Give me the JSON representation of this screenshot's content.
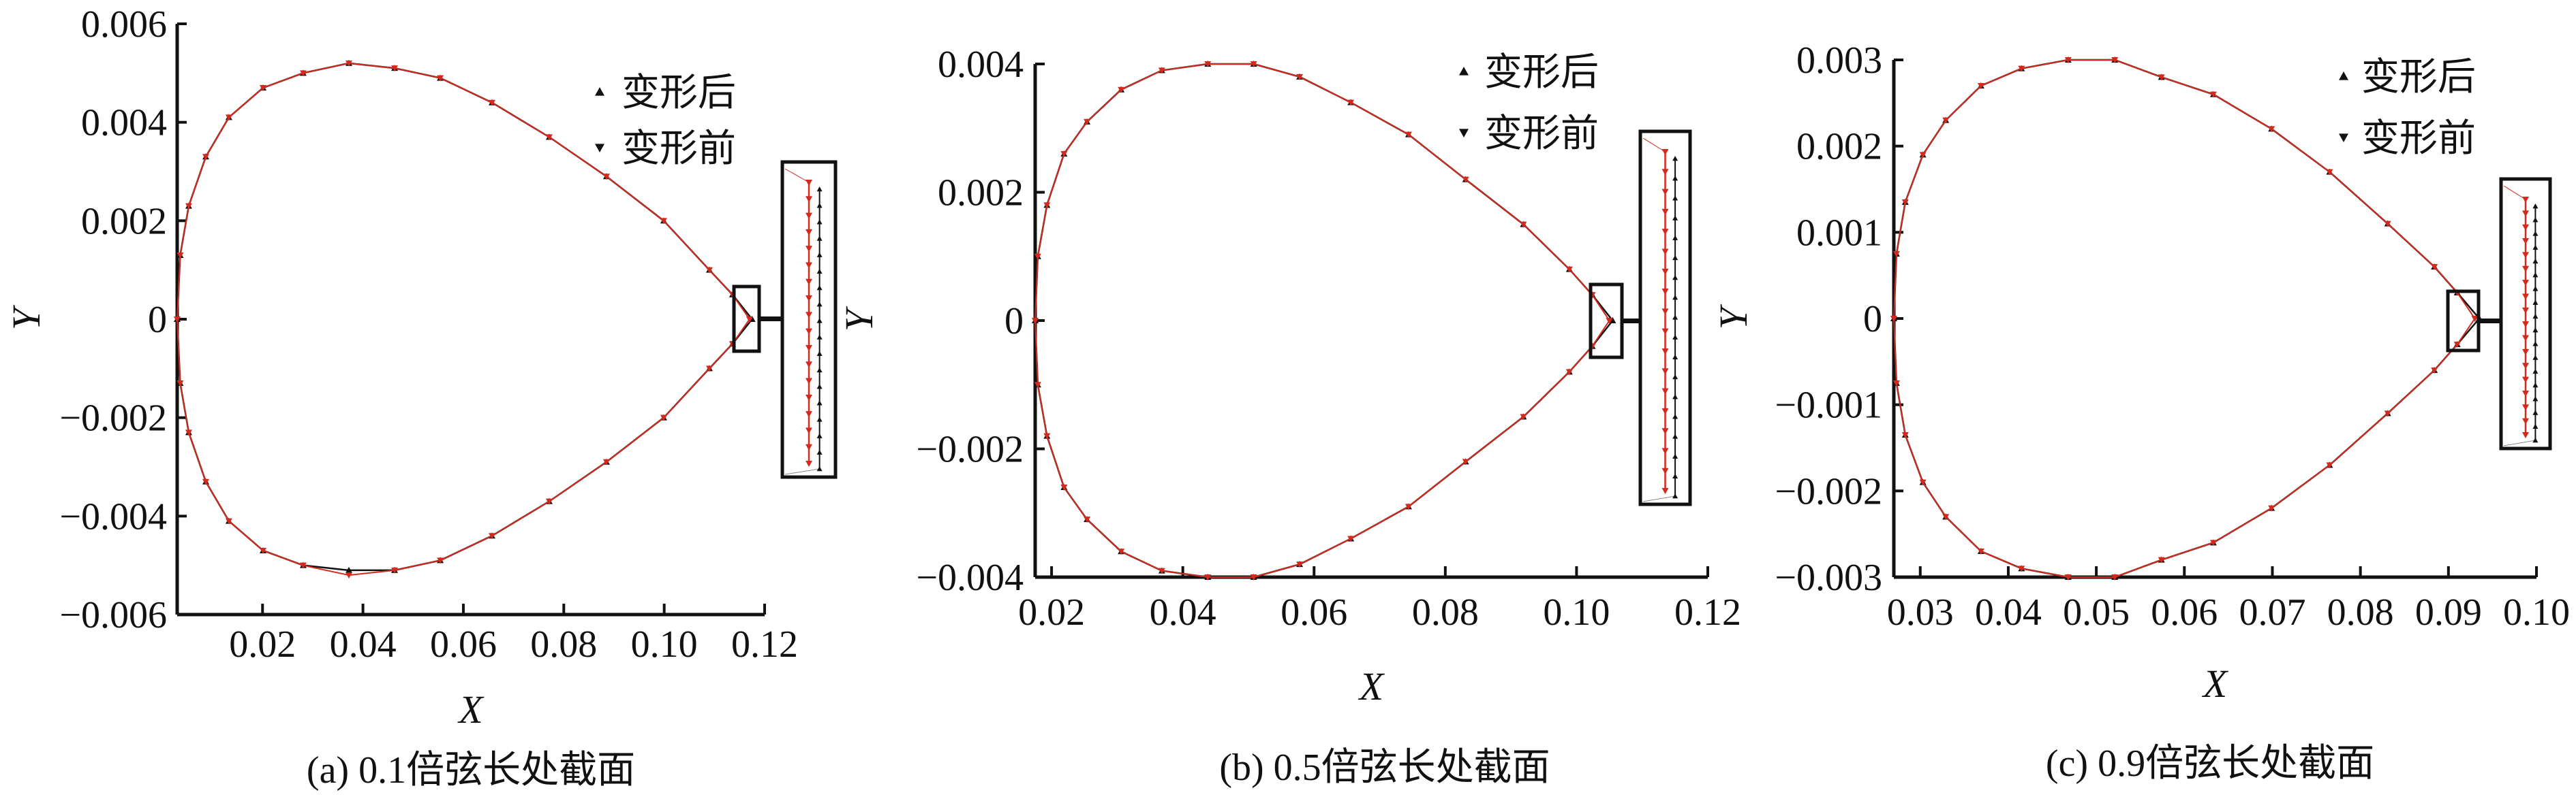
{
  "chart_data": [
    {
      "type": "line",
      "caption": "(a) 0.1倍弦长处截面",
      "xlabel": "X",
      "ylabel": "Y",
      "xlim": [
        0.003,
        0.12
      ],
      "ylim": [
        -0.006,
        0.006
      ],
      "xticks": [
        "0.02",
        "0.04",
        "0.06",
        "0.08",
        "0.10",
        "0.12"
      ],
      "xtick_values": [
        0.02,
        0.04,
        0.06,
        0.08,
        0.1,
        0.12
      ],
      "yticks": [
        "0.006",
        "0.004",
        "0.002",
        "0",
        "−0.002",
        "−0.004",
        "−0.006"
      ],
      "ytick_values": [
        0.006,
        0.004,
        0.002,
        0,
        -0.002,
        -0.004,
        -0.006
      ],
      "legend_placement": "top-right",
      "zoom_inset": "trailing edge",
      "series": [
        {
          "name": "变形后",
          "marker": "triangle-up",
          "color": "#111111",
          "x": [
            0.003,
            0.0036,
            0.0053,
            0.0087,
            0.0133,
            0.0201,
            0.0281,
            0.0372,
            0.0463,
            0.0554,
            0.0657,
            0.0771,
            0.0885,
            0.0999,
            0.109,
            0.1136,
            0.1175
          ],
          "y_upper": [
            0,
            0.0013,
            0.0023,
            0.0033,
            0.0041,
            0.0047,
            0.005,
            0.0052,
            0.0051,
            0.0049,
            0.0044,
            0.0037,
            0.0029,
            0.002,
            0.001,
            0.0005,
            0
          ],
          "y_lower": [
            0,
            -0.0013,
            -0.0023,
            -0.0033,
            -0.0041,
            -0.0047,
            -0.005,
            -0.0051,
            -0.0051,
            -0.0049,
            -0.0044,
            -0.0037,
            -0.0029,
            -0.002,
            -0.001,
            -0.0005,
            0
          ]
        },
        {
          "name": "变形前",
          "marker": "triangle-down",
          "color": "#d42a1e",
          "x": [
            0.003,
            0.0036,
            0.0053,
            0.0087,
            0.0133,
            0.0201,
            0.0281,
            0.0372,
            0.0463,
            0.0554,
            0.0657,
            0.0771,
            0.0885,
            0.0999,
            0.109,
            0.1136,
            0.117
          ],
          "y_upper": [
            0,
            0.0013,
            0.0023,
            0.0033,
            0.0041,
            0.0047,
            0.005,
            0.0052,
            0.0051,
            0.0049,
            0.0044,
            0.0037,
            0.0029,
            0.002,
            0.001,
            0.0005,
            0
          ],
          "y_lower": [
            0,
            -0.0013,
            -0.0023,
            -0.0033,
            -0.0041,
            -0.0047,
            -0.005,
            -0.0052,
            -0.0051,
            -0.0049,
            -0.0044,
            -0.0037,
            -0.0029,
            -0.002,
            -0.001,
            -0.0005,
            0
          ]
        }
      ]
    },
    {
      "type": "line",
      "caption": "(b) 0.5倍弦长处截面",
      "xlabel": "X",
      "ylabel": "Y",
      "xlim": [
        0.0175,
        0.12
      ],
      "ylim": [
        -0.004,
        0.004
      ],
      "xticks": [
        "0.02",
        "0.04",
        "0.06",
        "0.08",
        "0.10",
        "0.12"
      ],
      "xtick_values": [
        0.02,
        0.04,
        0.06,
        0.08,
        0.1,
        0.12
      ],
      "yticks": [
        "0.004",
        "0.002",
        "0",
        "−0.002",
        "−0.004"
      ],
      "ytick_values": [
        0.004,
        0.002,
        0,
        -0.002,
        -0.004
      ],
      "legend_placement": "top-right",
      "zoom_inset": "trailing edge",
      "series": [
        {
          "name": "变形后",
          "marker": "triangle-up",
          "color": "#111111",
          "x": [
            0.0175,
            0.0179,
            0.0193,
            0.0219,
            0.0254,
            0.0306,
            0.0368,
            0.0438,
            0.0508,
            0.0578,
            0.0656,
            0.0744,
            0.0831,
            0.0919,
            0.0989,
            0.1024,
            0.1055
          ],
          "y_upper": [
            0,
            0.001,
            0.0018,
            0.0026,
            0.0031,
            0.0036,
            0.0039,
            0.004,
            0.004,
            0.0038,
            0.0034,
            0.0029,
            0.0022,
            0.0015,
            0.0008,
            0.0004,
            0
          ],
          "y_lower": [
            0,
            -0.001,
            -0.0018,
            -0.0026,
            -0.0031,
            -0.0036,
            -0.0039,
            -0.004,
            -0.004,
            -0.0038,
            -0.0034,
            -0.0029,
            -0.0022,
            -0.0015,
            -0.0008,
            -0.0004,
            0
          ]
        },
        {
          "name": "变形前",
          "marker": "triangle-down",
          "color": "#d42a1e",
          "x": [
            0.0175,
            0.0179,
            0.0193,
            0.0219,
            0.0254,
            0.0306,
            0.0368,
            0.0438,
            0.0508,
            0.0578,
            0.0656,
            0.0744,
            0.0831,
            0.0919,
            0.0989,
            0.1024,
            0.105
          ],
          "y_upper": [
            0,
            0.001,
            0.0018,
            0.0026,
            0.0031,
            0.0036,
            0.0039,
            0.004,
            0.004,
            0.0038,
            0.0034,
            0.0029,
            0.0022,
            0.0015,
            0.0008,
            0.0004,
            0
          ],
          "y_lower": [
            0,
            -0.001,
            -0.0018,
            -0.0026,
            -0.0031,
            -0.0036,
            -0.0039,
            -0.004,
            -0.004,
            -0.0038,
            -0.0034,
            -0.0029,
            -0.0022,
            -0.0015,
            -0.0008,
            -0.0004,
            0
          ]
        }
      ]
    },
    {
      "type": "line",
      "caption": "(c) 0.9倍弦长处截面",
      "xlabel": "X",
      "ylabel": "Y",
      "xlim": [
        0.027,
        0.1
      ],
      "ylim": [
        -0.003,
        0.003
      ],
      "xticks": [
        "0.03",
        "0.04",
        "0.05",
        "0.06",
        "0.07",
        "0.08",
        "0.09",
        "0.10"
      ],
      "xtick_values": [
        0.03,
        0.04,
        0.05,
        0.06,
        0.07,
        0.08,
        0.09,
        0.1
      ],
      "yticks": [
        "0.003",
        "0.002",
        "0.001",
        "0",
        "−0.001",
        "−0.002",
        "−0.003"
      ],
      "ytick_values": [
        0.003,
        0.002,
        0.001,
        0,
        -0.001,
        -0.002,
        -0.003
      ],
      "legend_placement": "top-right",
      "zoom_inset": "trailing edge",
      "series": [
        {
          "name": "变形后",
          "marker": "triangle-up",
          "color": "#111111",
          "x": [
            0.027,
            0.0273,
            0.0283,
            0.0303,
            0.0329,
            0.0369,
            0.0415,
            0.0468,
            0.0521,
            0.0574,
            0.0633,
            0.0699,
            0.0765,
            0.0831,
            0.0884,
            0.091,
            0.0935
          ],
          "y_upper": [
            0,
            0.00075,
            0.00135,
            0.0019,
            0.0023,
            0.0027,
            0.0029,
            0.003,
            0.003,
            0.0028,
            0.0026,
            0.0022,
            0.0017,
            0.0011,
            0.0006,
            0.0003,
            0
          ],
          "y_lower": [
            0,
            -0.00075,
            -0.00135,
            -0.0019,
            -0.0023,
            -0.0027,
            -0.0029,
            -0.003,
            -0.003,
            -0.0028,
            -0.0026,
            -0.0022,
            -0.0017,
            -0.0011,
            -0.0006,
            -0.0003,
            0
          ]
        },
        {
          "name": "变形前",
          "marker": "triangle-down",
          "color": "#d42a1e",
          "x": [
            0.027,
            0.0273,
            0.0283,
            0.0303,
            0.0329,
            0.0369,
            0.0415,
            0.0468,
            0.0521,
            0.0574,
            0.0633,
            0.0699,
            0.0765,
            0.0831,
            0.0884,
            0.091,
            0.093
          ],
          "y_upper": [
            0,
            0.00075,
            0.00135,
            0.0019,
            0.0023,
            0.0027,
            0.0029,
            0.003,
            0.003,
            0.0028,
            0.0026,
            0.0022,
            0.0017,
            0.0011,
            0.0006,
            0.0003,
            0
          ],
          "y_lower": [
            0,
            -0.00075,
            -0.00135,
            -0.0019,
            -0.0023,
            -0.0027,
            -0.0029,
            -0.003,
            -0.003,
            -0.0028,
            -0.0026,
            -0.0022,
            -0.0017,
            -0.0011,
            -0.0006,
            -0.0003,
            0
          ]
        }
      ]
    }
  ]
}
